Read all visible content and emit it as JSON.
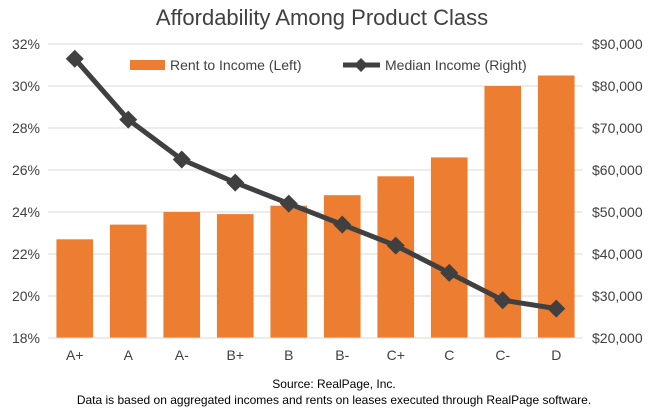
{
  "chart_data": {
    "type": "bar",
    "title": "Affordability Among Product Class",
    "categories": [
      "A+",
      "A",
      "A-",
      "B+",
      "B",
      "B-",
      "C+",
      "C",
      "C-",
      "D"
    ],
    "series": [
      {
        "name": "Rent to Income (Left)",
        "type": "bar",
        "axis": "left",
        "color": "#ED7D31",
        "values": [
          22.7,
          23.4,
          24.0,
          23.9,
          24.3,
          24.8,
          25.7,
          26.6,
          30.0,
          30.5
        ]
      },
      {
        "name": "Median Income (Right)",
        "type": "line",
        "axis": "right",
        "color": "#404040",
        "marker": "diamond",
        "values": [
          86500,
          72000,
          62500,
          57000,
          52000,
          47000,
          42000,
          35500,
          29000,
          27000
        ]
      }
    ],
    "y_left": {
      "min": 18,
      "max": 32,
      "step": 2,
      "tick_labels": [
        "18%",
        "20%",
        "22%",
        "24%",
        "26%",
        "28%",
        "30%",
        "32%"
      ]
    },
    "y_right": {
      "min": 20000,
      "max": 90000,
      "step": 10000,
      "tick_labels": [
        "$20,000",
        "$30,000",
        "$40,000",
        "$50,000",
        "$60,000",
        "$70,000",
        "$80,000",
        "$90,000"
      ]
    },
    "grid": true,
    "legend_position": "top"
  },
  "footer": {
    "source": "Source: RealPage, Inc.",
    "note": "Data is based on aggregated incomes and rents on leases executed through RealPage software."
  }
}
